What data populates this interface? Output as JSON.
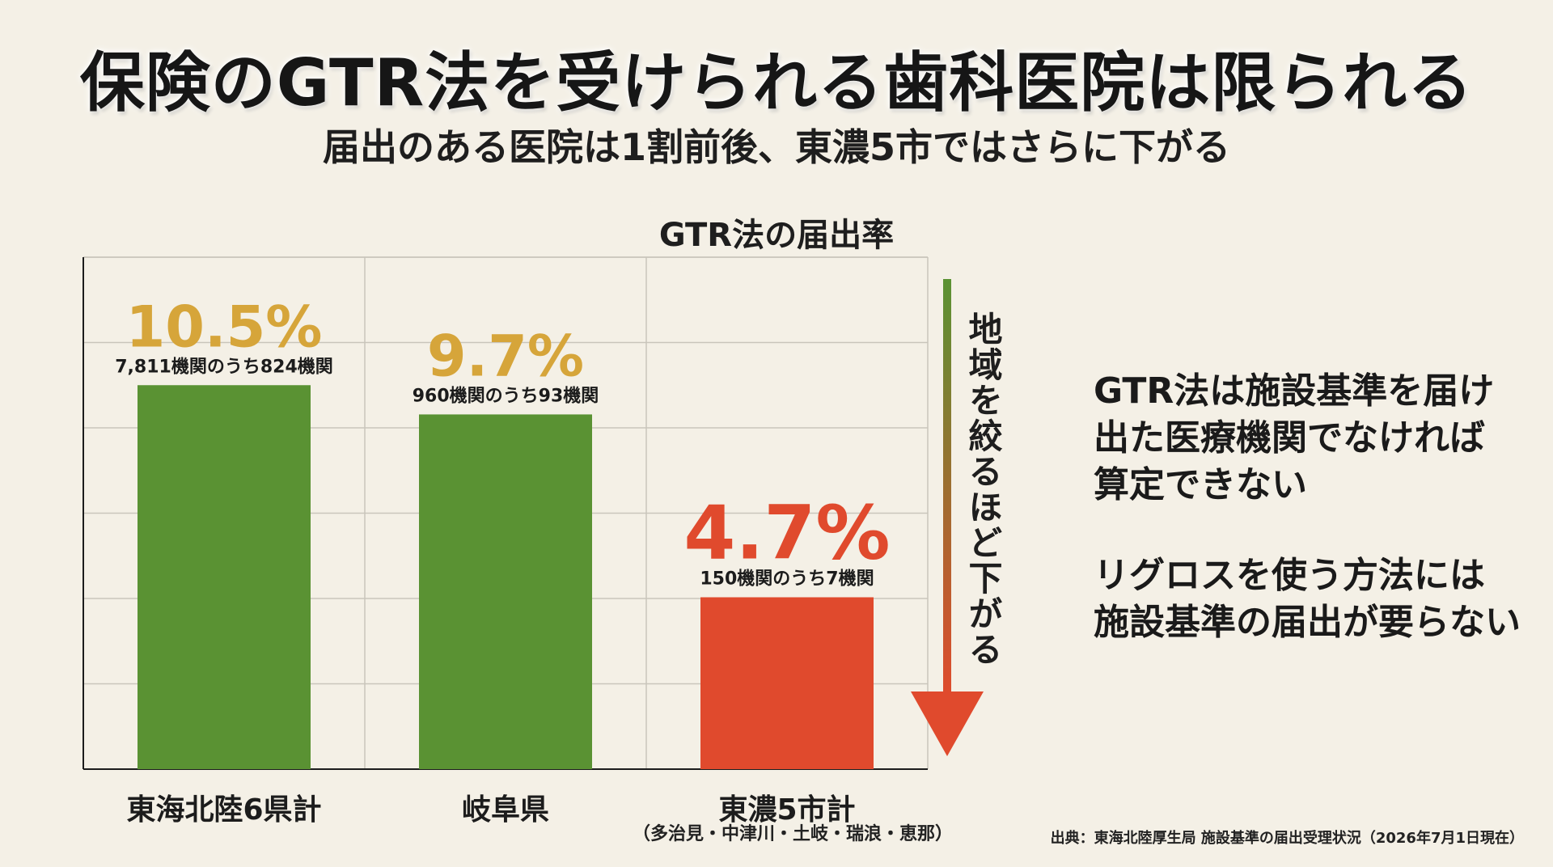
{
  "title": "保険のGTR法を受けられる歯科医院は限られる",
  "subtitle": "届出のある医院は1割前後、東濃5市ではさらに下がる",
  "chart_data": {
    "type": "bar",
    "title": "GTR法の届出率",
    "categories": [
      "東海北陸6県計",
      "岐阜県",
      "東濃5市計"
    ],
    "category_sub": "（多治見・中津川・土岐・瑞浪・恵那）",
    "values": [
      10.5,
      9.7,
      4.7
    ],
    "value_labels": [
      "10.5%",
      "9.7%",
      "4.7%"
    ],
    "detail_labels": [
      "7,811機関のうち824機関",
      "960機関のうち93機関",
      "150機関のうち7機関"
    ],
    "ylim": [
      0,
      14
    ],
    "grid": true,
    "bar_colors": [
      "#5a9233",
      "#5a9233",
      "#e04a2d"
    ],
    "label_colors": [
      "#d6a53a",
      "#d6a53a",
      "#e04a2d"
    ]
  },
  "arrow": {
    "text": "地域を絞るほど下がる",
    "color_start": "#5a9233",
    "color_end": "#e04a2d"
  },
  "notes": {
    "line1": "GTR法は施設基準を届け",
    "line2": "出た医療機関でなければ",
    "line3": "算定できない",
    "line4": "リグロスを使う方法には",
    "line5": "施設基準の届出が要らない"
  },
  "source": "出典：東海北陸厚生局 施設基準の届出受理状況（2026年7月1日現在）"
}
